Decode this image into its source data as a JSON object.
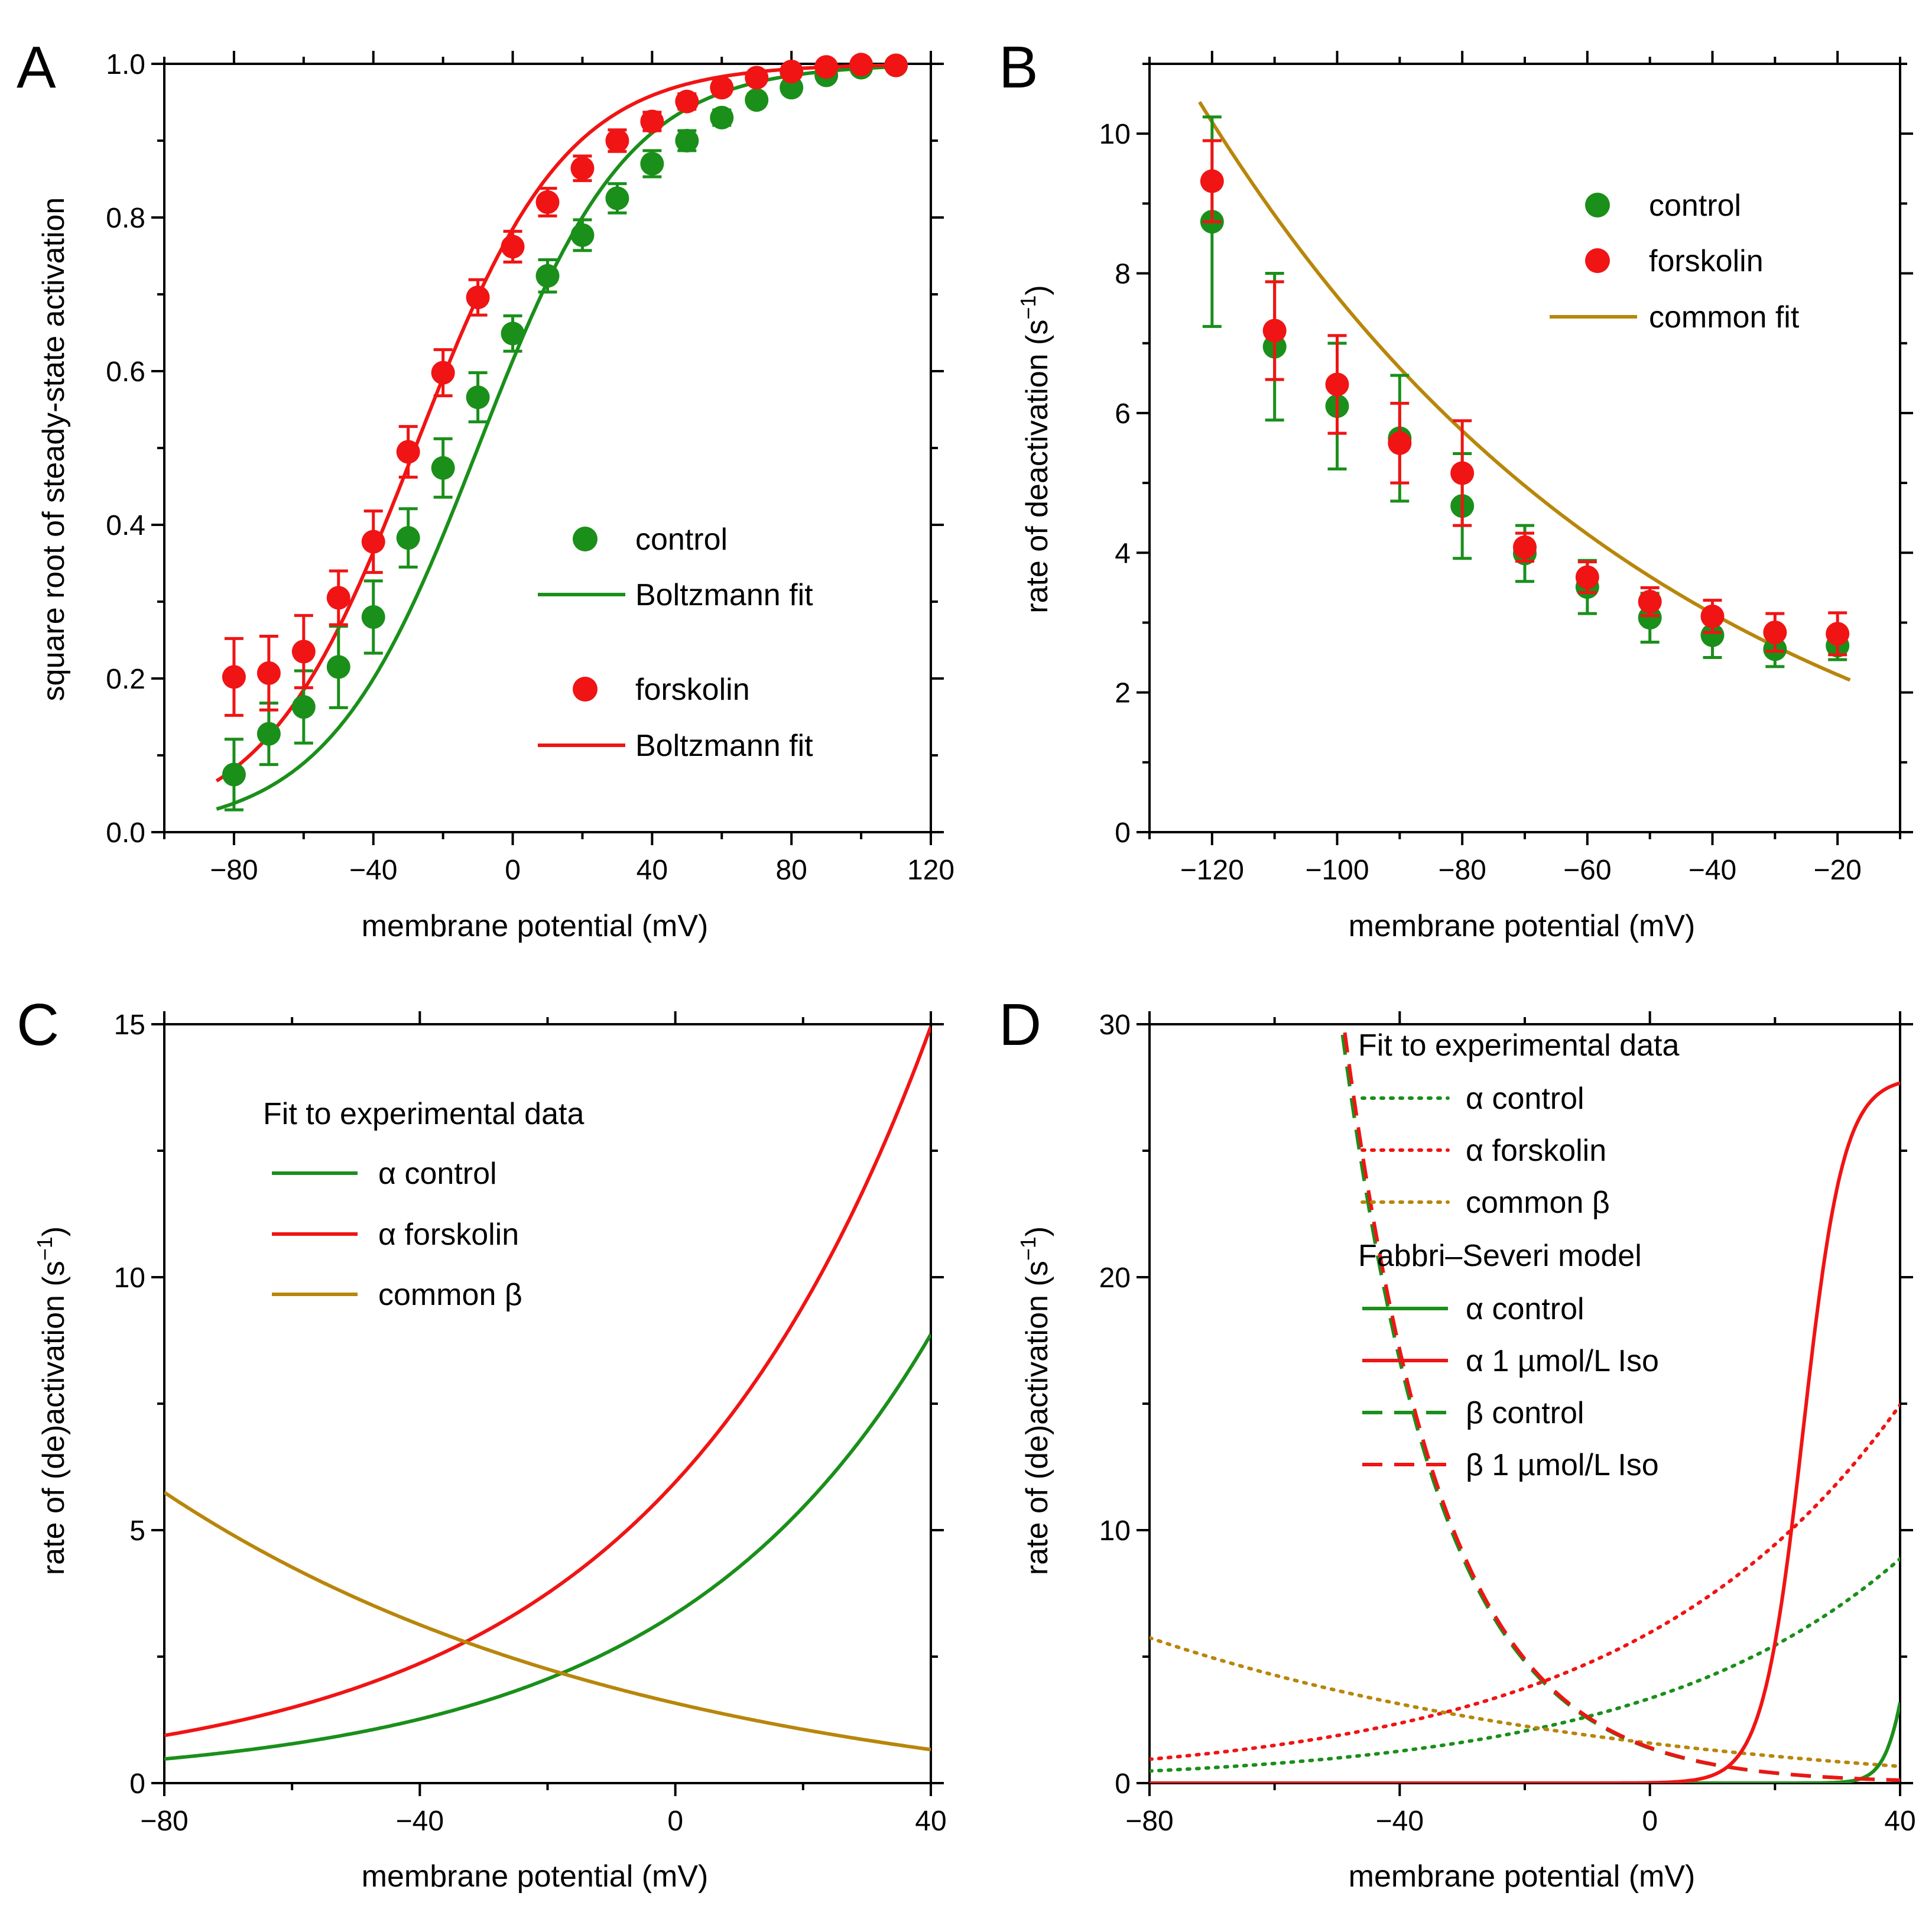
{
  "colors": {
    "green": "#1a8f1a",
    "red": "#f01414",
    "brown": "#b8860b",
    "axis": "#000000"
  },
  "chart_data": [
    {
      "panel": "A",
      "type": "scatter",
      "xlabel": "membrane potential (mV)",
      "ylabel": "square root of steady-state activation",
      "xlim": [
        -100,
        120
      ],
      "ylim": [
        0.0,
        1.0
      ],
      "xticks": [
        -80,
        -40,
        0,
        40,
        80,
        120
      ],
      "yticks": [
        0.0,
        0.2,
        0.4,
        0.6,
        0.8,
        1.0
      ],
      "ytick_labels": [
        "0.0",
        "0.2",
        "0.4",
        "0.6",
        "0.8",
        "1.0"
      ],
      "legend_position": "right",
      "series": [
        {
          "name": "control",
          "kind": "points",
          "color": "green",
          "x": [
            -80,
            -70,
            -60,
            -50,
            -40,
            -30,
            -20,
            -10,
            0,
            10,
            20,
            30,
            40,
            50,
            60,
            70,
            80,
            90,
            100,
            110
          ],
          "y": [
            0.075,
            0.128,
            0.163,
            0.215,
            0.28,
            0.383,
            0.474,
            0.566,
            0.649,
            0.724,
            0.777,
            0.825,
            0.87,
            0.9,
            0.93,
            0.953,
            0.969,
            0.985,
            0.995,
            0.998
          ],
          "err": [
            0.046,
            0.04,
            0.047,
            0.053,
            0.047,
            0.038,
            0.038,
            0.032,
            0.023,
            0.021,
            0.02,
            0.019,
            0.017,
            0.013,
            0.01,
            0.008,
            0.007,
            0.005,
            0.004,
            0.003
          ]
        },
        {
          "name": "Boltzmann fit",
          "kind": "line",
          "color": "green",
          "v_half": -10,
          "k": 21.6,
          "x_range": [
            -85,
            110
          ]
        },
        {
          "name": "forskolin",
          "kind": "points",
          "color": "red",
          "x": [
            -80,
            -70,
            -60,
            -50,
            -40,
            -30,
            -20,
            -10,
            0,
            10,
            20,
            30,
            40,
            50,
            60,
            70,
            80,
            90,
            100,
            110
          ],
          "y": [
            0.202,
            0.207,
            0.235,
            0.305,
            0.378,
            0.495,
            0.598,
            0.696,
            0.762,
            0.82,
            0.864,
            0.9,
            0.925,
            0.951,
            0.969,
            0.982,
            0.99,
            0.996,
            0.999,
            0.998
          ],
          "err": [
            0.05,
            0.048,
            0.047,
            0.035,
            0.04,
            0.033,
            0.03,
            0.023,
            0.02,
            0.018,
            0.016,
            0.014,
            0.012,
            0.01,
            0.008,
            0.006,
            0.005,
            0.004,
            0.003,
            0.002
          ]
        },
        {
          "name": "Boltzmann fit",
          "kind": "line",
          "color": "red",
          "v_half": -28,
          "k": 21.6,
          "x_range": [
            -85,
            110
          ]
        }
      ]
    },
    {
      "panel": "B",
      "type": "scatter",
      "xlabel": "membrane potential (mV)",
      "ylabel": "rate of deactivation (s",
      "ylabel_sup": "−1",
      "ylabel_end": ")",
      "xlim": [
        -130,
        -10
      ],
      "ylim": [
        0,
        11
      ],
      "xticks": [
        -120,
        -100,
        -80,
        -60,
        -40,
        -20
      ],
      "xtick_labels": [
        "−120",
        "−100",
        "−80",
        "−60",
        "−40",
        "−20"
      ],
      "yticks": [
        0,
        2,
        4,
        6,
        8,
        10
      ],
      "ytick_labels": [
        "0",
        "2",
        "4",
        "6",
        "8",
        "10"
      ],
      "legend_position": "top-right",
      "series": [
        {
          "name": "control",
          "kind": "points",
          "color": "green",
          "x": [
            -120,
            -110,
            -100,
            -90,
            -80,
            -70,
            -60,
            -50,
            -40,
            -30,
            -20
          ],
          "y": [
            8.74,
            6.95,
            6.1,
            5.64,
            4.67,
            3.99,
            3.51,
            3.07,
            2.82,
            2.62,
            2.67
          ],
          "err": [
            1.5,
            1.05,
            0.9,
            0.9,
            0.75,
            0.4,
            0.38,
            0.35,
            0.32,
            0.25,
            0.2
          ]
        },
        {
          "name": "forskolin",
          "kind": "points",
          "color": "red",
          "x": [
            -120,
            -110,
            -100,
            -90,
            -80,
            -70,
            -60,
            -50,
            -40,
            -30,
            -20
          ],
          "y": [
            9.32,
            7.18,
            6.41,
            5.57,
            5.14,
            4.08,
            3.65,
            3.3,
            3.09,
            2.86,
            2.84
          ],
          "err": [
            0.58,
            0.7,
            0.7,
            0.57,
            0.75,
            0.2,
            0.22,
            0.2,
            0.23,
            0.27,
            0.3
          ]
        },
        {
          "name": "common fit",
          "kind": "line",
          "color": "brown",
          "a": 2.25,
          "b": 0.0131,
          "c": -0.67,
          "x_range": [
            -122,
            -18
          ]
        }
      ]
    },
    {
      "panel": "C",
      "type": "line",
      "xlabel": "membrane potential (mV)",
      "ylabel": "rate of (de)activation (s",
      "ylabel_sup": "−1",
      "ylabel_end": ")",
      "xlim": [
        -80,
        40
      ],
      "ylim": [
        0,
        15
      ],
      "xticks": [
        -80,
        -40,
        0,
        40
      ],
      "xtick_labels": [
        "−80",
        "−40",
        "0",
        "40"
      ],
      "yticks": [
        0,
        5,
        10,
        15
      ],
      "ytick_labels": [
        "0",
        "5",
        "10",
        "15"
      ],
      "legend_title": "Fit to experimental data",
      "legend_position": "top-left",
      "series": [
        {
          "name": "α control",
          "kind": "line",
          "color": "green",
          "style": "solid",
          "a": 3.35,
          "b": 0.02434
        },
        {
          "name": "α forskolin",
          "kind": "line",
          "color": "red",
          "style": "solid",
          "a": 5.95,
          "b": 0.02304
        },
        {
          "name": "common β",
          "kind": "line",
          "color": "brown",
          "style": "solid",
          "a": 2.25,
          "b": 0.0131,
          "c": -0.67
        }
      ]
    },
    {
      "panel": "D",
      "type": "line",
      "xlabel": "membrane potential (mV)",
      "ylabel": "rate of (de)activation (s",
      "ylabel_sup": "−1",
      "ylabel_end": ")",
      "xlim": [
        -80,
        40
      ],
      "ylim": [
        0,
        30
      ],
      "xticks": [
        -80,
        -40,
        0,
        40
      ],
      "xtick_labels": [
        "−80",
        "−40",
        "0",
        "40"
      ],
      "yticks": [
        0,
        10,
        20,
        30
      ],
      "ytick_labels": [
        "0",
        "10",
        "20",
        "30"
      ],
      "legend_title_1": "Fit to experimental data",
      "legend_title_2": "Fabbri–Severi model",
      "legend_position": "top-right",
      "series": [
        {
          "name": "α control",
          "group": "fit",
          "kind": "line",
          "color": "green",
          "style": "dotted",
          "a": 3.35,
          "b": 0.02434
        },
        {
          "name": "α forskolin",
          "group": "fit",
          "kind": "line",
          "color": "red",
          "style": "dotted",
          "a": 5.95,
          "b": 0.02304
        },
        {
          "name": "common β",
          "group": "fit",
          "kind": "line",
          "color": "brown",
          "style": "dotted",
          "a": 2.25,
          "b": 0.0131,
          "c": -0.67
        },
        {
          "name": "α control",
          "group": "model",
          "kind": "line",
          "color": "green",
          "style": "solid",
          "a": 14.3,
          "b": 0.5,
          "c": 42.5
        },
        {
          "name": "α 1 µmol/L Iso",
          "group": "model",
          "kind": "line",
          "color": "red",
          "style": "solid",
          "a": 27.9,
          "b": 0.31,
          "c": 24.5
        },
        {
          "name": "β control",
          "group": "model",
          "kind": "line",
          "color": "green",
          "style": "dashed",
          "a": 0.2,
          "b": 0.06235,
          "c": 31.0
        },
        {
          "name": "β 1 µmol/L Iso",
          "group": "model",
          "kind": "line",
          "color": "red",
          "style": "dashed",
          "a": 0.115,
          "b": 0.06255,
          "c": 40.0
        }
      ]
    }
  ],
  "panel_letters": [
    "A",
    "B",
    "C",
    "D"
  ]
}
